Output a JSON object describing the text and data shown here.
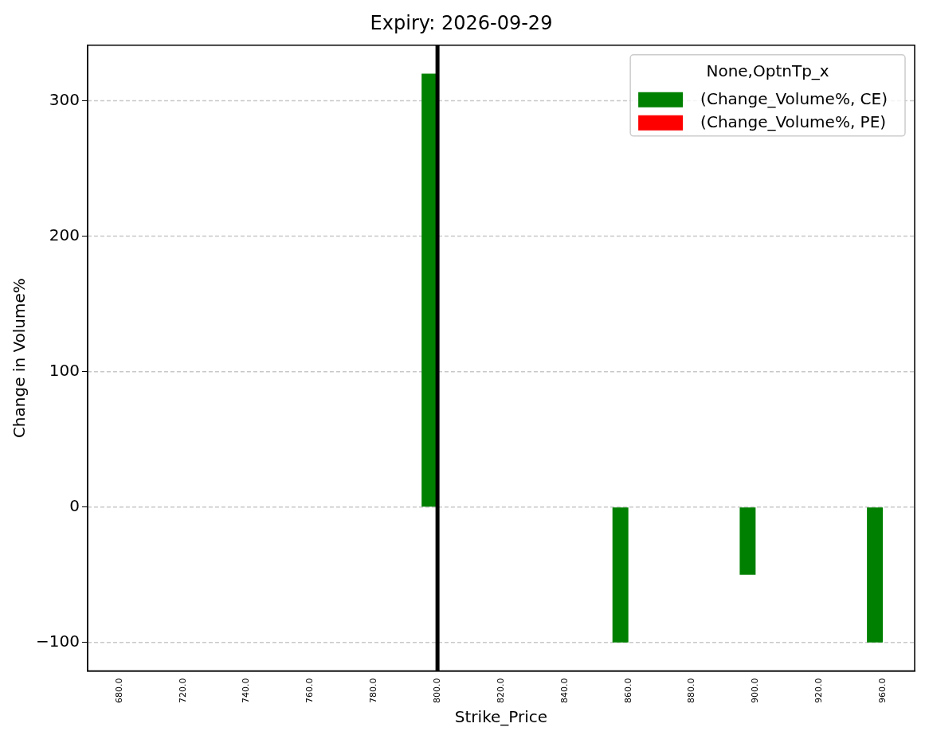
{
  "chart_data": {
    "type": "bar",
    "title": "Expiry: 2026-09-29",
    "xlabel": "Strike_Price",
    "ylabel": "Change in Volume%",
    "legend_title": "None,OptnTp_x",
    "categories": [
      "680.0",
      "720.0",
      "740.0",
      "760.0",
      "780.0",
      "800.0",
      "820.0",
      "840.0",
      "860.0",
      "880.0",
      "900.0",
      "920.0",
      "960.0"
    ],
    "series": [
      {
        "name": "(Change_Volume%, CE)",
        "color": "#008000",
        "values": [
          null,
          null,
          null,
          null,
          null,
          320,
          null,
          null,
          -100,
          null,
          -50,
          null,
          -100
        ]
      },
      {
        "name": "(Change_Volume%, PE)",
        "color": "#ff0000",
        "values": [
          null,
          null,
          null,
          null,
          null,
          null,
          null,
          null,
          null,
          null,
          null,
          null,
          null
        ]
      }
    ],
    "ylim": [
      -121,
      341
    ],
    "yticks": [
      {
        "value": -100,
        "label": "−100"
      },
      0,
      100,
      200,
      300
    ],
    "grid": "y",
    "legend": "top right",
    "ref_lines": [
      {
        "axis": "x",
        "value": "800.0",
        "color": "#000000"
      }
    ]
  }
}
